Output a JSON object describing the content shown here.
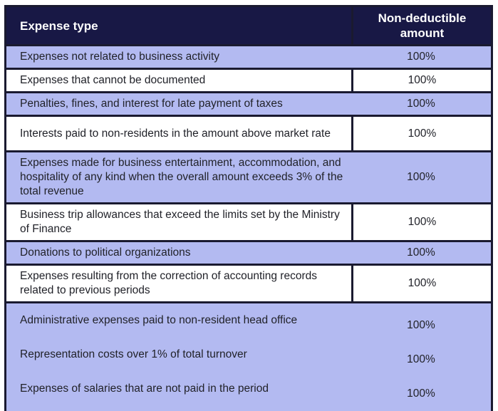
{
  "table": {
    "header": {
      "expense_type": "Expense type",
      "amount": "Non-deductible amount"
    },
    "rows": [
      {
        "expense": "Expenses not related to business activity",
        "amount": "100%"
      },
      {
        "expense": "Expenses that cannot be documented",
        "amount": "100%"
      },
      {
        "expense": "Penalties, fines, and interest for late payment of taxes",
        "amount": "100%"
      },
      {
        "expense": "Interests paid to non-residents in the amount above market rate",
        "amount": "100%"
      },
      {
        "expense": "Expenses made for business entertainment, accommodation, and hospitality of any kind when the overall amount exceeds 3% of the total revenue",
        "amount": "100%"
      },
      {
        "expense": "Business trip allowances that exceed the limits set by the Ministry of Finance",
        "amount": "100%"
      },
      {
        "expense": "Donations to political organizations",
        "amount": "100%"
      },
      {
        "expense": "Expenses resulting from the correction of accounting records related to previous periods",
        "amount": "100%"
      }
    ],
    "merged_row_items": [
      {
        "expense": "Administrative expenses paid to non-resident head office",
        "amount": "100%"
      },
      {
        "expense": "Representation costs over 1% of total turnover",
        "amount": "100%"
      },
      {
        "expense": "Expenses of salaries that are not paid in the period",
        "amount": "100%"
      }
    ],
    "colors": {
      "header_bg": "#181845",
      "header_text": "#ffffff",
      "shaded_row_bg": "#b3baf1",
      "border": "#1a1a30",
      "body_text": "#212229"
    }
  }
}
